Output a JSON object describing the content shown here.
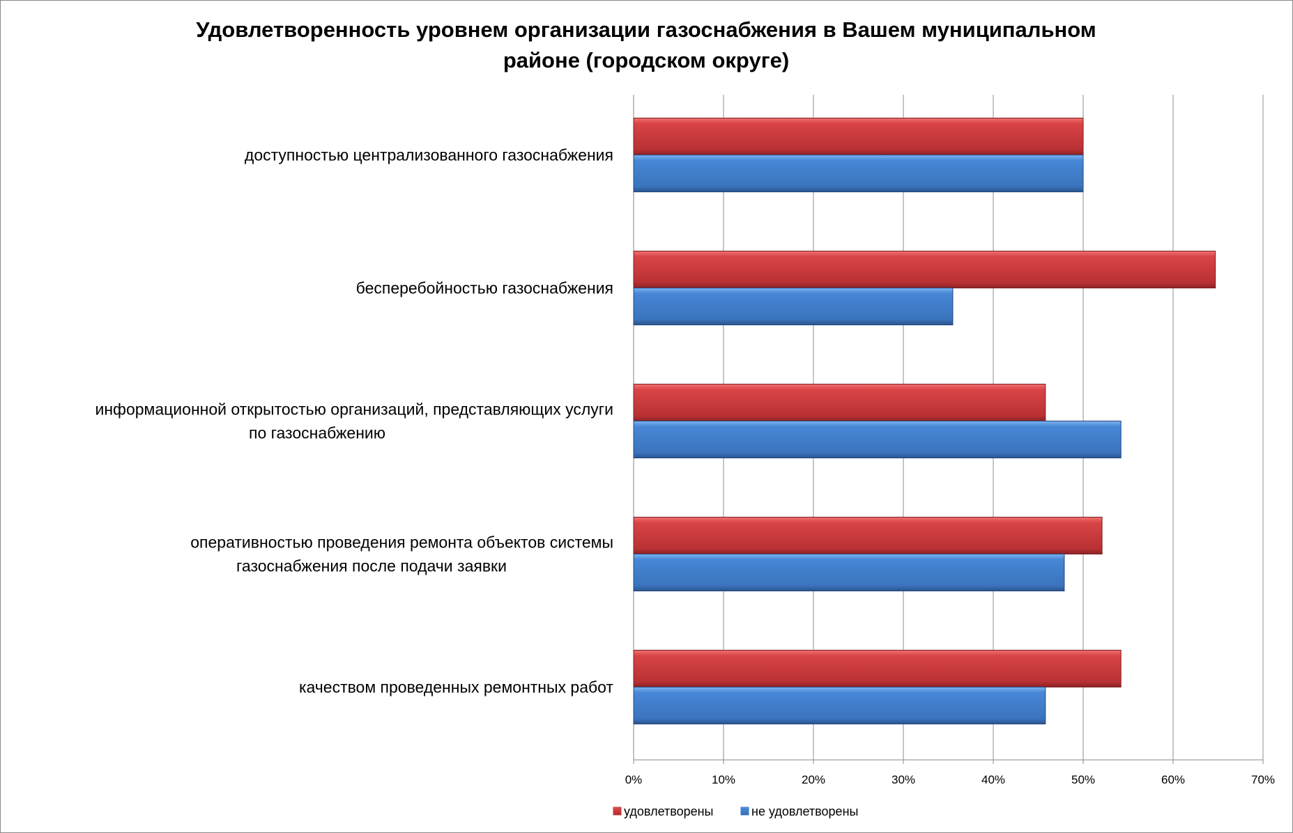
{
  "chart_data": {
    "type": "bar",
    "orientation": "horizontal",
    "title": [
      "Удовлетворенность уровнем организации газоснабжения в Вашем муниципальном",
      "районе (городском округе)"
    ],
    "categories": [
      [
        "доступностью централизованного газоснабжения"
      ],
      [
        "бесперебойностью  газоснабжения"
      ],
      [
        "информационной открытостью организаций, представляющих услуги",
        "по газоснабжению"
      ],
      [
        "оперативностью проведения ремонта объектов системы",
        "газоснабжения после подачи заявки"
      ],
      [
        "качеством проведенных ремонтных работ"
      ]
    ],
    "series": [
      {
        "name": "удовлетворены",
        "color": "#c0393b",
        "values": [
          50.0,
          64.7,
          45.8,
          52.1,
          54.2
        ]
      },
      {
        "name": "не удовлетворены",
        "color": "#3b78c4",
        "values": [
          50.0,
          35.5,
          54.2,
          47.9,
          45.8
        ]
      }
    ],
    "xlim": [
      0,
      70
    ],
    "xticks": [
      "0%",
      "10%",
      "20%",
      "30%",
      "40%",
      "50%",
      "60%",
      "70%"
    ],
    "xlabel": "",
    "ylabel": "",
    "grid": true,
    "legend": "bottom"
  }
}
